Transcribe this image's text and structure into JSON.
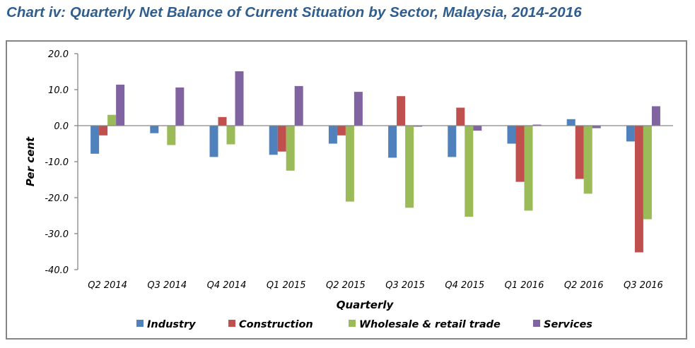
{
  "chart_data": {
    "type": "bar",
    "title": "Chart iv: Quarterly Net Balance of Current Situation by Sector, Malaysia, 2014-2016",
    "xlabel": "Quarterly",
    "ylabel": "Per cent",
    "ylim": [
      -40,
      20
    ],
    "yticks": [
      20,
      10,
      0,
      -10,
      -20,
      -30,
      -40
    ],
    "ytick_labels": [
      "20.0",
      "10.0",
      "0.0",
      "-10.0",
      "-20.0",
      "-30.0",
      "-40.0"
    ],
    "grid": false,
    "legend_position": "bottom",
    "categories": [
      "Q2 2014",
      "Q3 2014",
      "Q4 2014",
      "Q1 2015",
      "Q2 2015",
      "Q3 2015",
      "Q4 2015",
      "Q1 2016",
      "Q2 2016",
      "Q3 2016"
    ],
    "series": [
      {
        "name": "Industry",
        "color": "#4F81BD",
        "values": [
          -7.8,
          -2.1,
          -8.7,
          -8.1,
          -5.0,
          -8.9,
          -8.7,
          -5.0,
          1.8,
          -4.4
        ]
      },
      {
        "name": "Construction",
        "color": "#C0504D",
        "values": [
          -2.7,
          0.0,
          2.4,
          -7.2,
          -2.7,
          8.2,
          5.0,
          -15.6,
          -14.8,
          -35.2
        ]
      },
      {
        "name": "Wholesale & retail trade",
        "color": "#9BBB59",
        "values": [
          3.0,
          -5.4,
          -5.2,
          -12.5,
          -21.1,
          -22.8,
          -25.3,
          -23.6,
          -18.9,
          -26.0
        ]
      },
      {
        "name": "Services",
        "color": "#8064A2",
        "values": [
          11.4,
          10.6,
          15.1,
          11.0,
          9.4,
          -0.3,
          -1.4,
          0.3,
          -0.7,
          5.4
        ]
      }
    ]
  },
  "colors": {
    "title": "#2e5d8e",
    "axis": "#868686",
    "frame": "#858585"
  }
}
